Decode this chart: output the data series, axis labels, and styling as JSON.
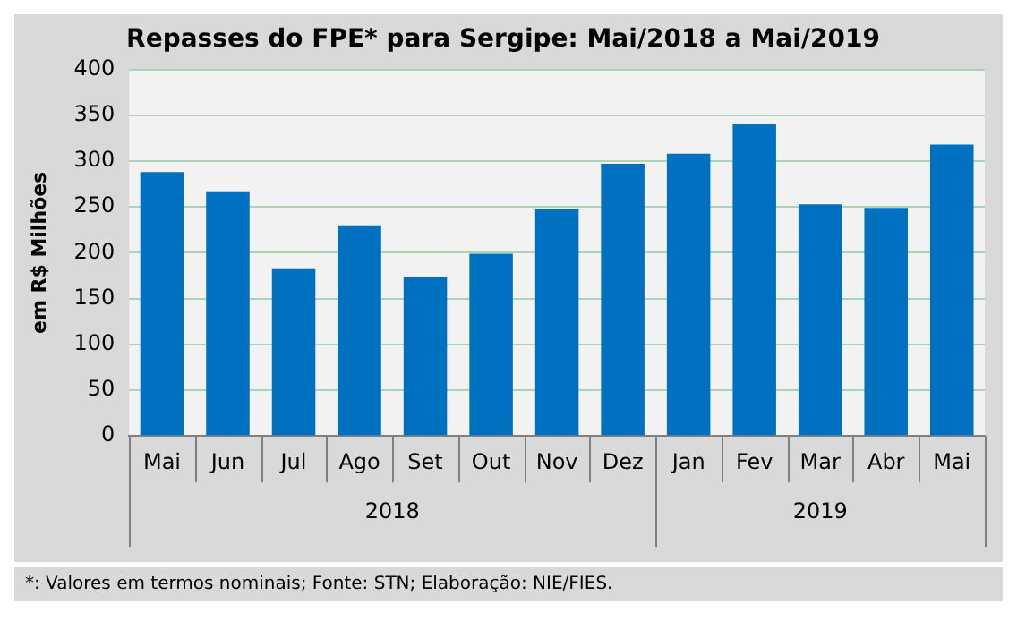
{
  "chart_data": {
    "type": "bar",
    "title": "Repasses do FPE* para Sergipe: Mai/2018 a Mai/2019",
    "ylabel": "em R$ Milhões",
    "categories": [
      "Mai",
      "Jun",
      "Jul",
      "Ago",
      "Set",
      "Out",
      "Nov",
      "Dez",
      "Jan",
      "Fev",
      "Mar",
      "Abr",
      "Mai"
    ],
    "values": [
      288,
      267,
      182,
      230,
      174,
      199,
      248,
      297,
      308,
      340,
      253,
      249,
      318
    ],
    "color": "#0070c0",
    "ylim": [
      0,
      400
    ],
    "yticks": [
      0,
      50,
      100,
      150,
      200,
      250,
      300,
      350,
      400
    ],
    "grid": "y",
    "annotations": [
      "2018",
      "2019",
      "*: Valores em termos nominais; Fonte: STN; Elaboração: NIE/FIES."
    ]
  }
}
